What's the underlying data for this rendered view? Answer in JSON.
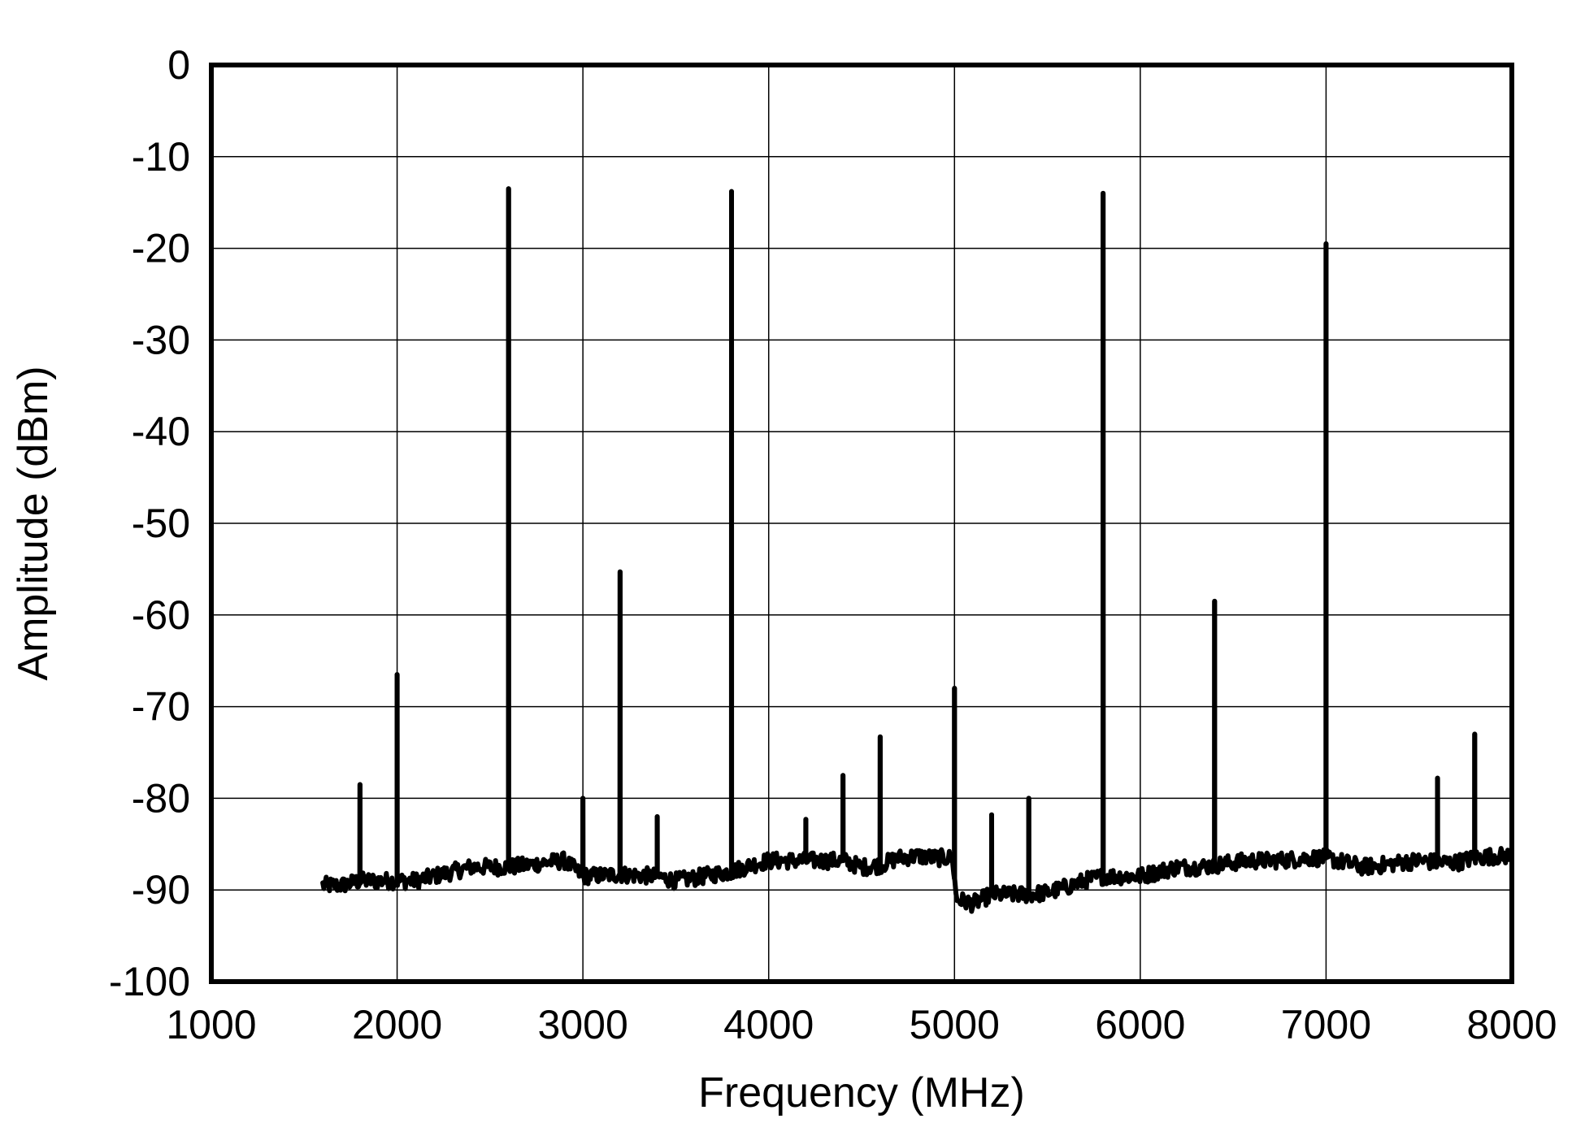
{
  "chart_data": {
    "type": "line",
    "title": "",
    "xlabel": "Frequency (MHz)",
    "ylabel": "Amplitude (dBm)",
    "xlim": [
      1000,
      8000
    ],
    "ylim": [
      -100,
      0
    ],
    "x_ticks": [
      1000,
      2000,
      3000,
      4000,
      5000,
      6000,
      7000,
      8000
    ],
    "y_ticks": [
      0,
      -10,
      -20,
      -30,
      -40,
      -50,
      -60,
      -70,
      -80,
      -90,
      -100
    ],
    "x_tick_labels": [
      "1000",
      "2000",
      "3000",
      "4000",
      "5000",
      "6000",
      "7000",
      "8000"
    ],
    "y_tick_labels": [
      "0",
      "-10",
      "-20",
      "-30",
      "-40",
      "-50",
      "-60",
      "-70",
      "-80",
      "-90",
      "-100"
    ],
    "grid": true,
    "line_color": "#000000",
    "x_start": 1600,
    "x_end": 8000,
    "noise_floor": [
      [
        1600,
        -89.5
      ],
      [
        1700,
        -89.5
      ],
      [
        1800,
        -89.0
      ],
      [
        1900,
        -89.0
      ],
      [
        2000,
        -89.0
      ],
      [
        2100,
        -89.0
      ],
      [
        2200,
        -88.5
      ],
      [
        2300,
        -88.0
      ],
      [
        2400,
        -87.5
      ],
      [
        2500,
        -87.5
      ],
      [
        2600,
        -87.5
      ],
      [
        2700,
        -87.3
      ],
      [
        2800,
        -87.0
      ],
      [
        2900,
        -86.8
      ],
      [
        3000,
        -88.5
      ],
      [
        3200,
        -88.3
      ],
      [
        3400,
        -88.5
      ],
      [
        3500,
        -89.0
      ],
      [
        3600,
        -88.7
      ],
      [
        3700,
        -88.3
      ],
      [
        3800,
        -88.0
      ],
      [
        3900,
        -87.3
      ],
      [
        4000,
        -86.8
      ],
      [
        4200,
        -86.8
      ],
      [
        4400,
        -86.8
      ],
      [
        4500,
        -87.5
      ],
      [
        4600,
        -87.3
      ],
      [
        4700,
        -86.5
      ],
      [
        4800,
        -86.3
      ],
      [
        4900,
        -86.5
      ],
      [
        4990,
        -86.5
      ],
      [
        5010,
        -91.0
      ],
      [
        5100,
        -91.5
      ],
      [
        5200,
        -90.5
      ],
      [
        5300,
        -90.5
      ],
      [
        5400,
        -90.5
      ],
      [
        5500,
        -90.3
      ],
      [
        5600,
        -89.7
      ],
      [
        5700,
        -89.0
      ],
      [
        5800,
        -88.5
      ],
      [
        5900,
        -88.5
      ],
      [
        6000,
        -88.5
      ],
      [
        6100,
        -88.0
      ],
      [
        6200,
        -87.5
      ],
      [
        6300,
        -87.5
      ],
      [
        6400,
        -87.3
      ],
      [
        6500,
        -87.0
      ],
      [
        6600,
        -86.8
      ],
      [
        6700,
        -86.8
      ],
      [
        6800,
        -86.7
      ],
      [
        6900,
        -86.5
      ],
      [
        7000,
        -86.5
      ],
      [
        7100,
        -87.0
      ],
      [
        7200,
        -87.5
      ],
      [
        7300,
        -87.3
      ],
      [
        7400,
        -87.0
      ],
      [
        7500,
        -86.8
      ],
      [
        7600,
        -87.0
      ],
      [
        7700,
        -87.0
      ],
      [
        7800,
        -86.5
      ],
      [
        7900,
        -86.3
      ],
      [
        8000,
        -86.3
      ]
    ],
    "spurs": [
      {
        "x": 1800,
        "y": -78.5
      },
      {
        "x": 2000,
        "y": -66.5
      },
      {
        "x": 2600,
        "y": -13.5
      },
      {
        "x": 3000,
        "y": -80.0
      },
      {
        "x": 3200,
        "y": -55.3
      },
      {
        "x": 3400,
        "y": -82.0
      },
      {
        "x": 3800,
        "y": -13.8
      },
      {
        "x": 4200,
        "y": -82.3
      },
      {
        "x": 4400,
        "y": -77.5
      },
      {
        "x": 4600,
        "y": -73.3
      },
      {
        "x": 5000,
        "y": -68.0
      },
      {
        "x": 5200,
        "y": -81.8
      },
      {
        "x": 5400,
        "y": -80.0
      },
      {
        "x": 5800,
        "y": -14.0
      },
      {
        "x": 6400,
        "y": -58.5
      },
      {
        "x": 7000,
        "y": -19.5
      },
      {
        "x": 7600,
        "y": -77.8
      },
      {
        "x": 7800,
        "y": -73.0
      }
    ]
  }
}
